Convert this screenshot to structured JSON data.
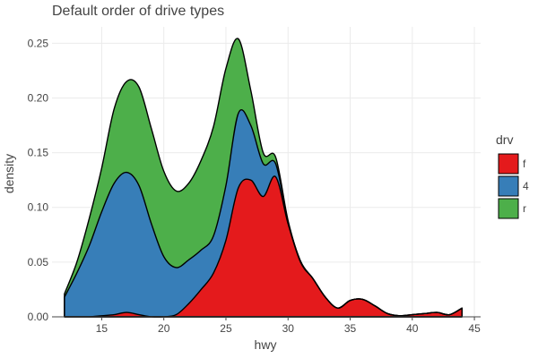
{
  "chart_data": {
    "type": "area",
    "stacked": true,
    "title": "Default order of drive types",
    "xlabel": "hwy",
    "ylabel": "density",
    "xlim": [
      11,
      45.5
    ],
    "ylim": [
      0,
      0.265
    ],
    "x_ticks": [
      15,
      20,
      25,
      30,
      35,
      40,
      45
    ],
    "y_ticks": [
      0,
      0.05,
      0.1,
      0.15,
      0.2,
      0.25
    ],
    "y_tick_labels": [
      "0.00",
      "0.05",
      "0.10",
      "0.15",
      "0.20",
      "0.25"
    ],
    "grid": true,
    "legend": {
      "title": "drv",
      "placement": "right"
    },
    "x": [
      12,
      13,
      14,
      15,
      16,
      17,
      18,
      19,
      20,
      21,
      22,
      23,
      24,
      25,
      26,
      27,
      28,
      29,
      30,
      31,
      32,
      33,
      34,
      35,
      36,
      37,
      38,
      39,
      40,
      41,
      42,
      43,
      44
    ],
    "series": [
      {
        "name": "f",
        "color": "#e41a1c",
        "values": [
          0.0,
          0.0,
          0.0,
          0.001,
          0.002,
          0.004,
          0.002,
          0.0,
          0.0,
          0.002,
          0.012,
          0.025,
          0.04,
          0.07,
          0.118,
          0.125,
          0.11,
          0.128,
          0.085,
          0.05,
          0.035,
          0.018,
          0.008,
          0.015,
          0.016,
          0.01,
          0.003,
          0.001,
          0.002,
          0.003,
          0.004,
          0.002,
          0.008
        ]
      },
      {
        "name": "4",
        "color": "#377eb8",
        "values": [
          0.018,
          0.04,
          0.065,
          0.095,
          0.12,
          0.128,
          0.118,
          0.085,
          0.055,
          0.043,
          0.04,
          0.036,
          0.034,
          0.05,
          0.068,
          0.05,
          0.03,
          0.012,
          0.002,
          0.001,
          0.0,
          0.0,
          0.0,
          0.0,
          0.0,
          0.0,
          0.0,
          0.0,
          0.0,
          0.0,
          0.0,
          0.0,
          0.0
        ]
      },
      {
        "name": "r",
        "color": "#4daf4a",
        "values": [
          0.003,
          0.01,
          0.025,
          0.04,
          0.068,
          0.083,
          0.09,
          0.087,
          0.078,
          0.07,
          0.07,
          0.082,
          0.1,
          0.107,
          0.068,
          0.032,
          0.01,
          0.006,
          0.001,
          0.0,
          0.0,
          0.0,
          0.0,
          0.0,
          0.0,
          0.0,
          0.0,
          0.0,
          0.0,
          0.0,
          0.0,
          0.0,
          0.0
        ]
      }
    ]
  }
}
